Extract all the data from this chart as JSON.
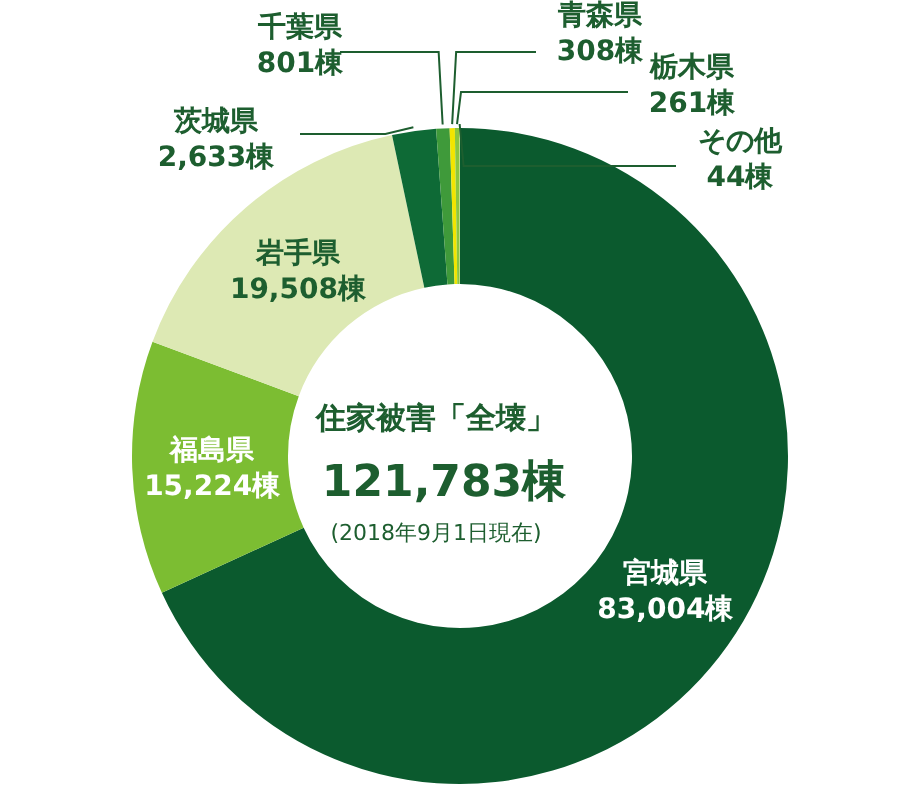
{
  "chart_data": {
    "type": "donut",
    "title": "住家被害「全壊」",
    "categories": [
      "宮城県",
      "福島県",
      "岩手県",
      "茨城県",
      "千葉県",
      "青森県",
      "栃木県",
      "その他"
    ],
    "values": [
      83004,
      15224,
      19508,
      2633,
      801,
      308,
      261,
      44
    ],
    "value_labels": [
      "83,004棟",
      "15,224棟",
      "19,508棟",
      "2,633棟",
      "801棟",
      "308棟",
      "261棟",
      "44棟"
    ],
    "colors": [
      "#0b5a2e",
      "#7cbd32",
      "#dde9b4",
      "#0e6a36",
      "#3f9a3a",
      "#f2e500",
      "#8cc63e",
      "#b7d86a"
    ],
    "annotations": [
      "121,783棟",
      "(2018年9月1日現在)"
    ]
  }
}
